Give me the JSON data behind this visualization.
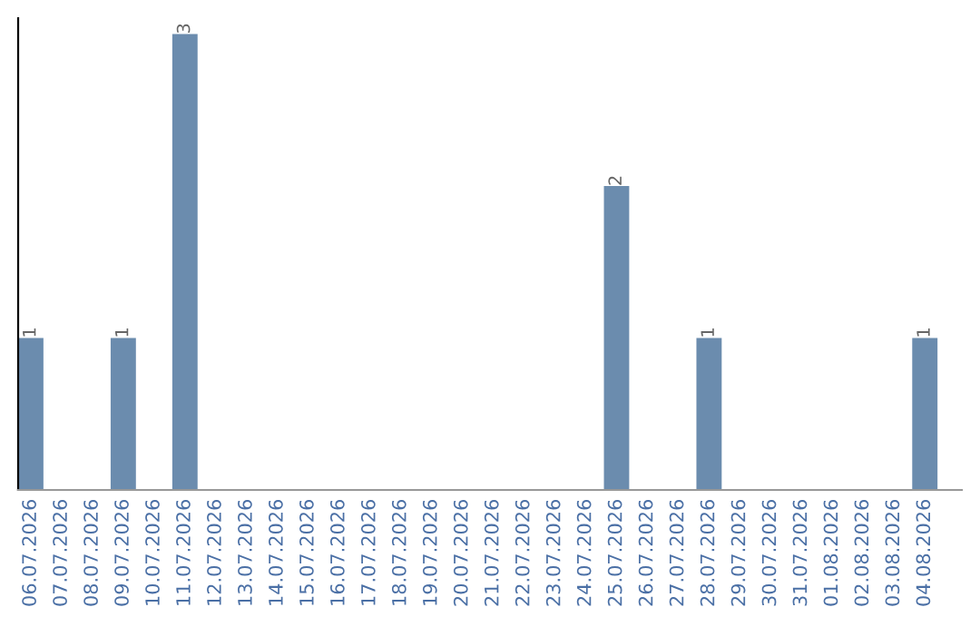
{
  "chart_data": {
    "type": "bar",
    "categories": [
      "06.07.2026",
      "07.07.2026",
      "08.07.2026",
      "09.07.2026",
      "10.07.2026",
      "11.07.2026",
      "12.07.2026",
      "13.07.2026",
      "14.07.2026",
      "15.07.2026",
      "16.07.2026",
      "17.07.2026",
      "18.07.2026",
      "19.07.2026",
      "20.07.2026",
      "21.07.2026",
      "22.07.2026",
      "23.07.2026",
      "24.07.2026",
      "25.07.2026",
      "26.07.2026",
      "27.07.2026",
      "28.07.2026",
      "29.07.2026",
      "30.07.2026",
      "31.07.2026",
      "01.08.2026",
      "02.08.2026",
      "03.08.2026",
      "04.08.2026"
    ],
    "values": [
      1,
      0,
      0,
      1,
      0,
      3,
      0,
      0,
      0,
      0,
      0,
      0,
      0,
      0,
      0,
      0,
      0,
      0,
      0,
      2,
      0,
      0,
      1,
      0,
      0,
      0,
      0,
      0,
      0,
      1
    ],
    "value_labels": [
      "1",
      null,
      null,
      "1",
      null,
      "3",
      null,
      null,
      null,
      null,
      null,
      null,
      null,
      null,
      null,
      null,
      null,
      null,
      null,
      "2",
      null,
      null,
      "1",
      null,
      null,
      null,
      null,
      null,
      null,
      "1"
    ],
    "color": "#6b8cae",
    "tick_labels": "x",
    "grid": false,
    "legend": false
  }
}
